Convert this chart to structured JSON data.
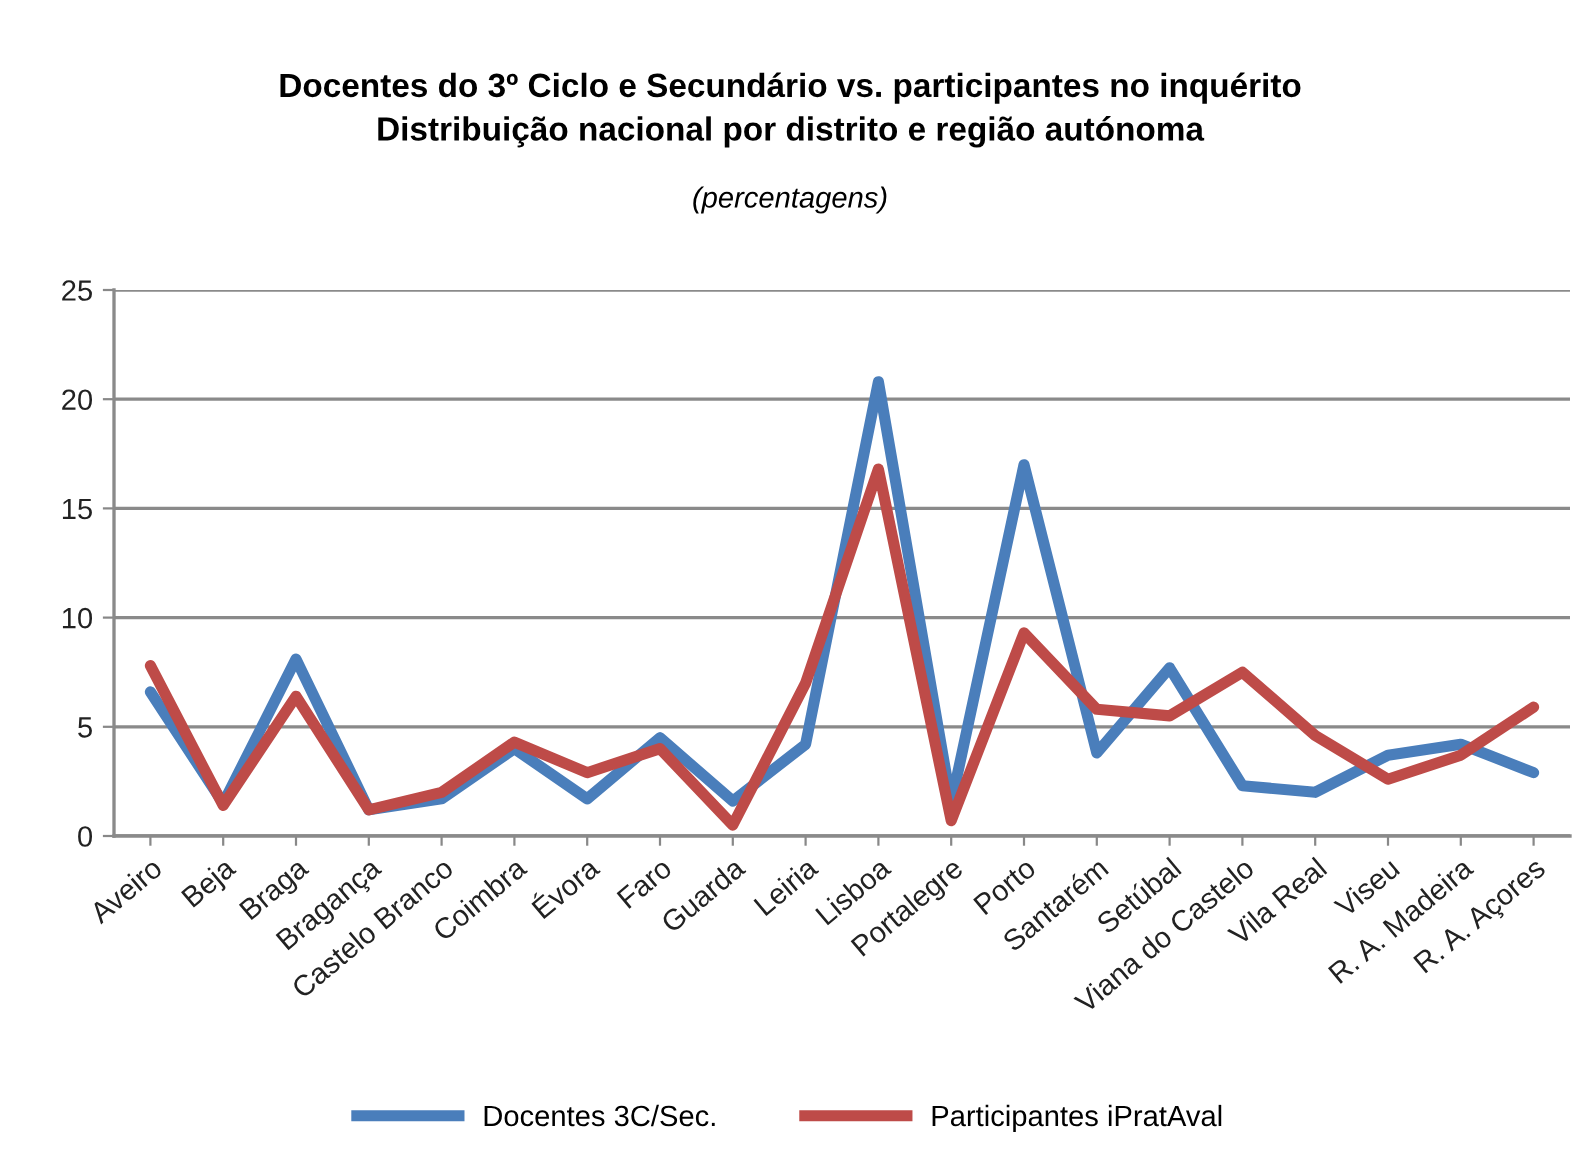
{
  "chart_data": {
    "type": "line",
    "title": "Docentes do 3º Ciclo e Secundário vs. participantes no inquérito\nDistribuição nacional por distrito e região autónoma",
    "subtitle": "(percentagens)",
    "categories": [
      "Aveiro",
      "Beja",
      "Braga",
      "Bragança",
      "Castelo Branco",
      "Coimbra",
      "Évora",
      "Faro",
      "Guarda",
      "Leiria",
      "Lisboa",
      "Portalegre",
      "Porto",
      "Santarém",
      "Setúbal",
      "Viana do Castelo",
      "Vila Real",
      "Viseu",
      "R. A. Madeira",
      "R. A. Açores"
    ],
    "series": [
      {
        "name": "Docentes 3C/Sec.",
        "color": "#4a7ebb",
        "values": [
          6.6,
          1.5,
          8.1,
          1.2,
          1.7,
          4.0,
          1.7,
          4.5,
          1.6,
          4.2,
          20.8,
          1.5,
          17.0,
          3.8,
          7.7,
          2.3,
          2.0,
          3.7,
          4.2,
          2.9
        ]
      },
      {
        "name": "Participantes iPratAval",
        "color": "#be4b48",
        "values": [
          7.8,
          1.4,
          6.4,
          1.2,
          2.0,
          4.3,
          2.9,
          4.0,
          0.5,
          7.0,
          16.8,
          0.7,
          9.3,
          5.8,
          5.5,
          7.5,
          4.6,
          2.6,
          3.7,
          5.9
        ]
      }
    ],
    "ylim": [
      0,
      25
    ],
    "yticks": [
      0,
      5,
      10,
      15,
      20,
      25
    ],
    "grid": "y",
    "legend": "bottom",
    "marker": "none",
    "line_style": "solid"
  }
}
